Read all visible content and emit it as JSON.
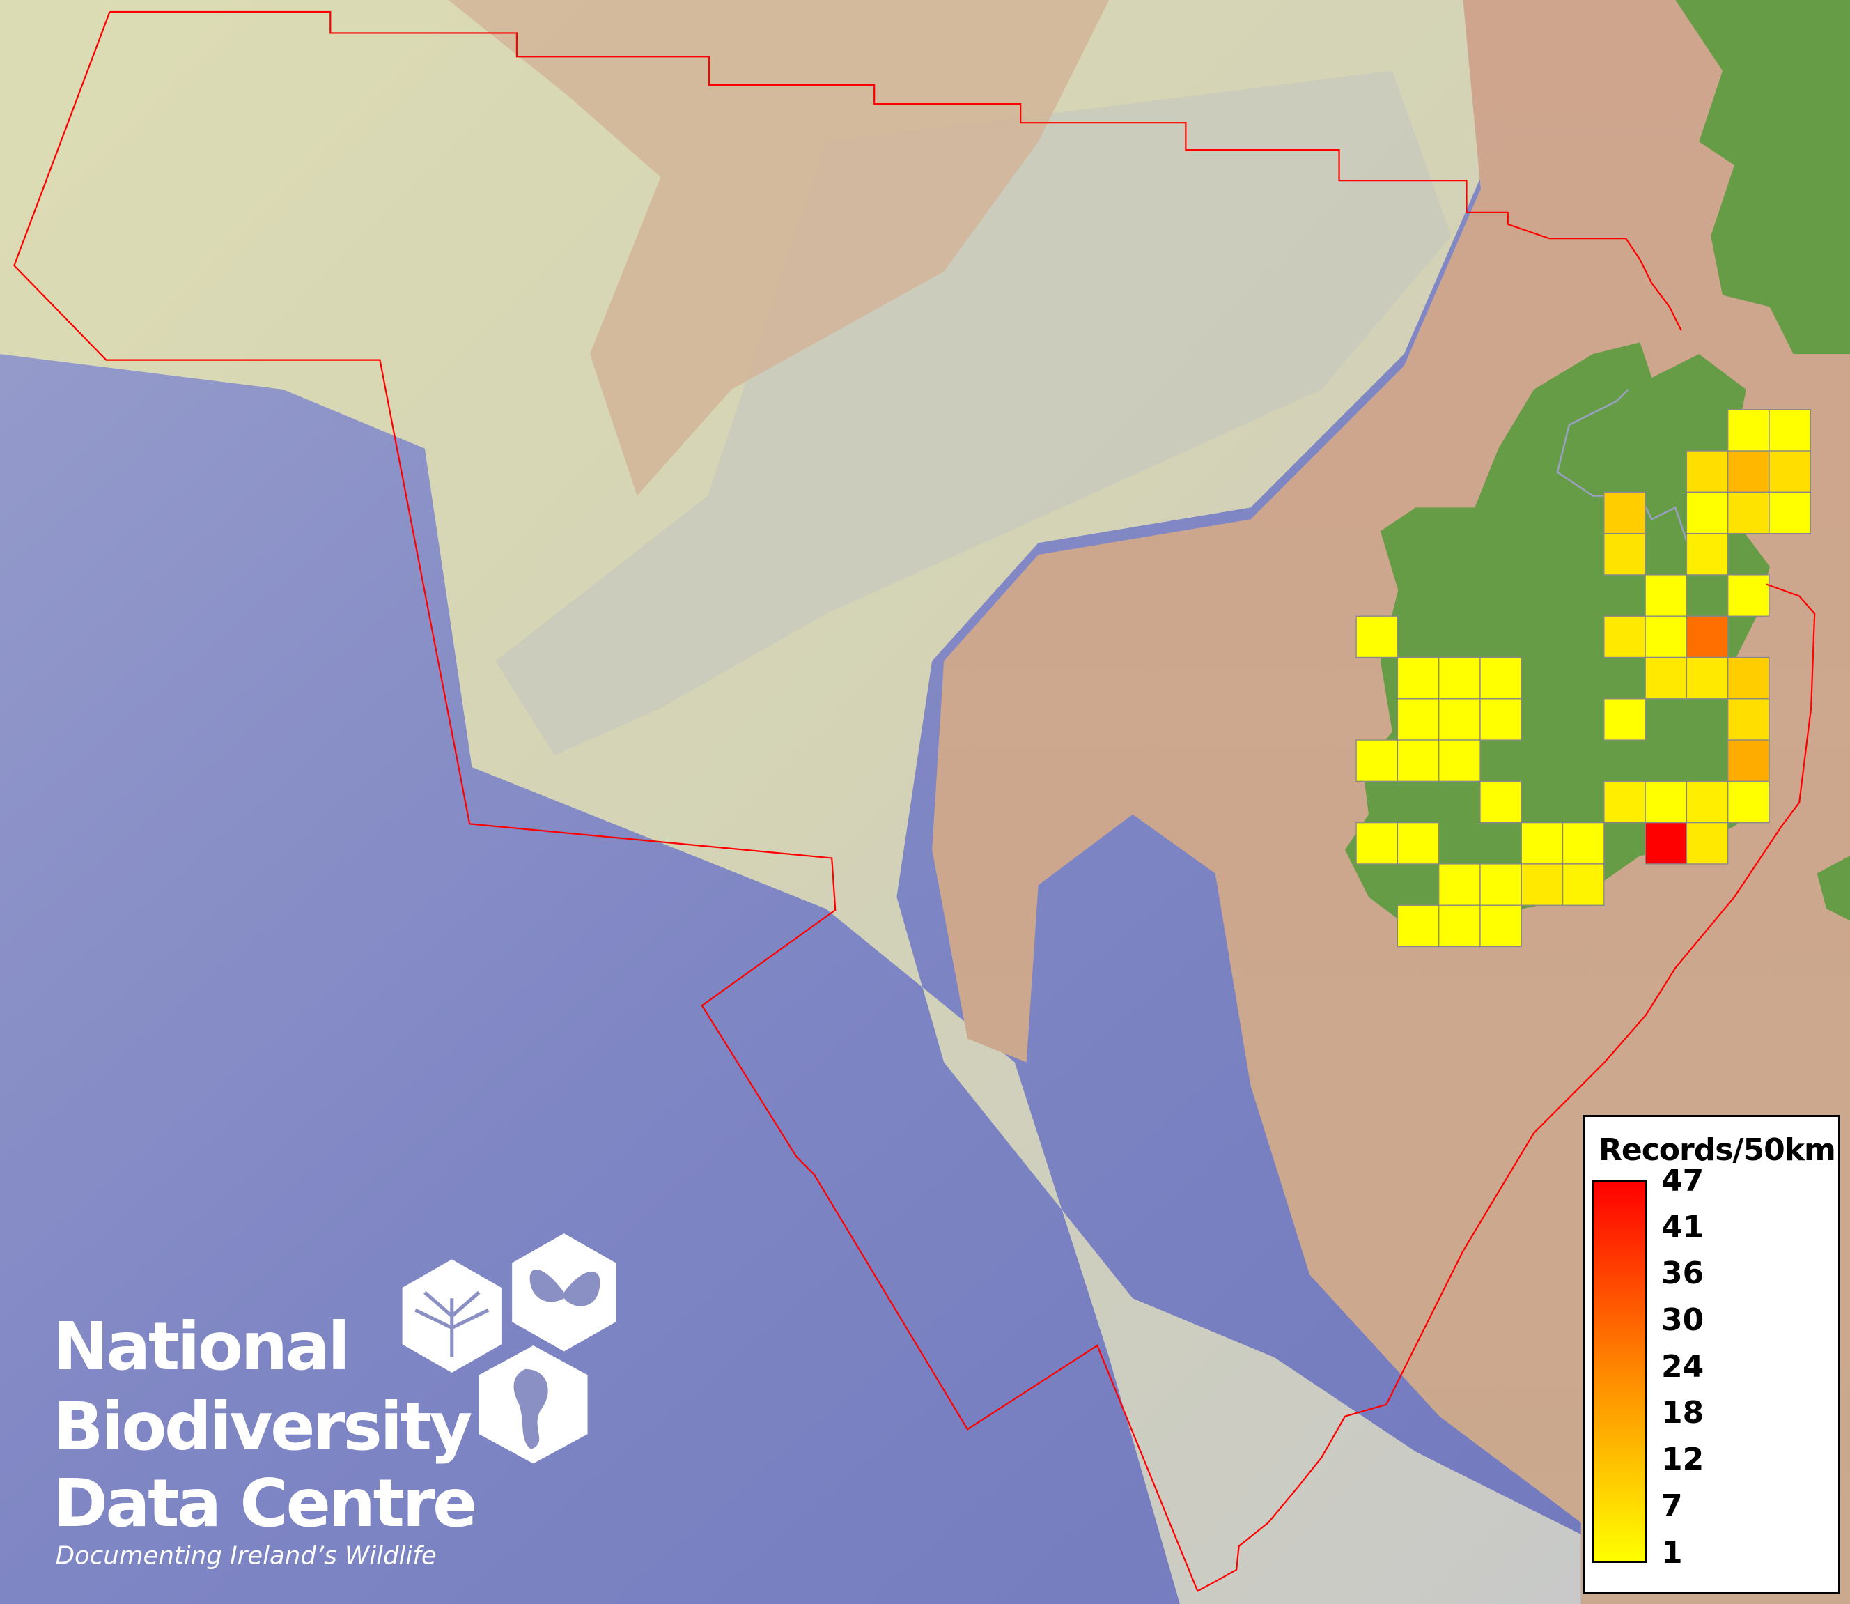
{
  "logo": {
    "line1": "National",
    "line2": "Biodiversity",
    "line3": "Data Centre",
    "tagline": "Documenting Ireland’s Wildlife",
    "icons": [
      "tree-icon",
      "butterfly-icon",
      "seahorse-icon"
    ]
  },
  "legend": {
    "title": "Records/50km",
    "min": 1,
    "max": 47,
    "ticks": [
      "47",
      "41",
      "36",
      "30",
      "24",
      "18",
      "12",
      "7",
      "1"
    ],
    "color_low": "#ffff00",
    "color_mid": "#ff8800",
    "color_high": "#ff0000"
  },
  "colors": {
    "deep_sea": "#7d84c2",
    "shelf": "#d9d8b4",
    "tan": "#c9a78e",
    "land": "#669c45",
    "boundary": "#ff0000",
    "cell_border": "#888888"
  },
  "map": {
    "grid_resolution": "50km",
    "cells": [
      {
        "col": 9,
        "row": 0,
        "value": 1
      },
      {
        "col": 10,
        "row": 0,
        "value": 1
      },
      {
        "col": 8,
        "row": 1,
        "value": 7
      },
      {
        "col": 9,
        "row": 1,
        "value": 14
      },
      {
        "col": 10,
        "row": 1,
        "value": 7
      },
      {
        "col": 6,
        "row": 2,
        "value": 10
      },
      {
        "col": 8,
        "row": 2,
        "value": 1
      },
      {
        "col": 9,
        "row": 2,
        "value": 6
      },
      {
        "col": 10,
        "row": 2,
        "value": 1
      },
      {
        "col": 6,
        "row": 3,
        "value": 6
      },
      {
        "col": 8,
        "row": 3,
        "value": 4
      },
      {
        "col": 7,
        "row": 4,
        "value": 1
      },
      {
        "col": 9,
        "row": 4,
        "value": 1
      },
      {
        "col": 0,
        "row": 5,
        "value": 1
      },
      {
        "col": 6,
        "row": 5,
        "value": 5
      },
      {
        "col": 7,
        "row": 5,
        "value": 1
      },
      {
        "col": 8,
        "row": 5,
        "value": 27
      },
      {
        "col": 1,
        "row": 6,
        "value": 1
      },
      {
        "col": 2,
        "row": 6,
        "value": 1
      },
      {
        "col": 3,
        "row": 6,
        "value": 1
      },
      {
        "col": 7,
        "row": 6,
        "value": 5
      },
      {
        "col": 8,
        "row": 6,
        "value": 5
      },
      {
        "col": 9,
        "row": 6,
        "value": 10
      },
      {
        "col": 1,
        "row": 7,
        "value": 1
      },
      {
        "col": 2,
        "row": 7,
        "value": 1
      },
      {
        "col": 3,
        "row": 7,
        "value": 1
      },
      {
        "col": 6,
        "row": 7,
        "value": 1
      },
      {
        "col": 9,
        "row": 7,
        "value": 7
      },
      {
        "col": 0,
        "row": 8,
        "value": 1
      },
      {
        "col": 1,
        "row": 8,
        "value": 1
      },
      {
        "col": 2,
        "row": 8,
        "value": 1
      },
      {
        "col": 9,
        "row": 8,
        "value": 16
      },
      {
        "col": 3,
        "row": 9,
        "value": 1
      },
      {
        "col": 6,
        "row": 9,
        "value": 4
      },
      {
        "col": 7,
        "row": 9,
        "value": 1
      },
      {
        "col": 8,
        "row": 9,
        "value": 4
      },
      {
        "col": 9,
        "row": 9,
        "value": 1
      },
      {
        "col": 0,
        "row": 10,
        "value": 1
      },
      {
        "col": 1,
        "row": 10,
        "value": 1
      },
      {
        "col": 4,
        "row": 10,
        "value": 1
      },
      {
        "col": 5,
        "row": 10,
        "value": 1
      },
      {
        "col": 7,
        "row": 10,
        "value": 47
      },
      {
        "col": 8,
        "row": 10,
        "value": 5
      },
      {
        "col": 2,
        "row": 11,
        "value": 1
      },
      {
        "col": 3,
        "row": 11,
        "value": 1
      },
      {
        "col": 4,
        "row": 11,
        "value": 5
      },
      {
        "col": 5,
        "row": 11,
        "value": 3
      },
      {
        "col": 1,
        "row": 12,
        "value": 1
      },
      {
        "col": 2,
        "row": 12,
        "value": 1
      },
      {
        "col": 3,
        "row": 12,
        "value": 1
      }
    ]
  }
}
